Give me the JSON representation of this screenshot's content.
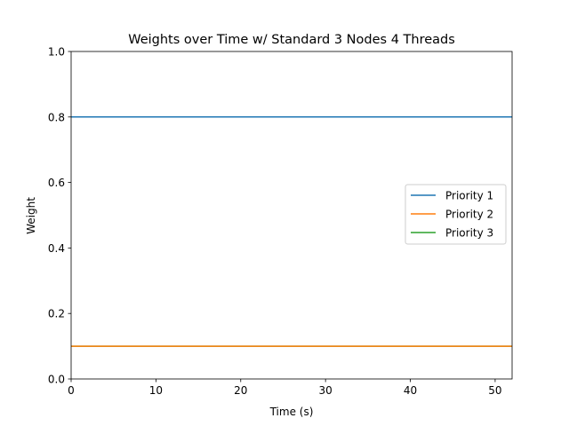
{
  "chart_data": {
    "type": "line",
    "title": "Weights over Time w/ Standard 3 Nodes 4 Threads",
    "xlabel": "Time (s)",
    "ylabel": "Weight",
    "xlim": [
      0,
      52
    ],
    "ylim": [
      0,
      1.0
    ],
    "xticks": [
      "0",
      "10",
      "20",
      "30",
      "40",
      "50"
    ],
    "yticks": [
      "0.0",
      "0.2",
      "0.4",
      "0.6",
      "0.8",
      "1.0"
    ],
    "grid": false,
    "legend_position": "center-right",
    "series": [
      {
        "name": "Priority 1",
        "color": "#1f77b4",
        "x": [
          0,
          52
        ],
        "y": [
          0.8,
          0.8
        ]
      },
      {
        "name": "Priority 2",
        "color": "#ff7f0e",
        "x": [
          0,
          52
        ],
        "y": [
          0.1,
          0.1
        ]
      },
      {
        "name": "Priority 3",
        "color": "#2ca02c",
        "x": [
          0,
          52
        ],
        "y": [
          0.1,
          0.1
        ]
      }
    ]
  }
}
